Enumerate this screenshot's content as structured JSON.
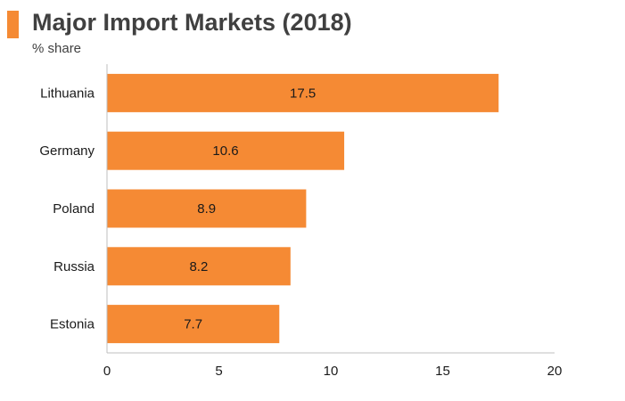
{
  "header": {
    "title": "Major Import Markets (2018)",
    "subtitle": "% share",
    "accent_color": "#f58a34"
  },
  "chart_data": {
    "type": "bar",
    "orientation": "horizontal",
    "title": "Major Import Markets (2018)",
    "subtitle": "% share",
    "categories": [
      "Lithuania",
      "Germany",
      "Poland",
      "Russia",
      "Estonia"
    ],
    "values": [
      17.5,
      10.6,
      8.9,
      8.2,
      7.7
    ],
    "xlim": [
      0,
      20
    ],
    "xticks": [
      0,
      5,
      10,
      15,
      20
    ],
    "bar_color": "#f58a34",
    "axis_color": "#bfbfbf",
    "grid": false,
    "legend": "none"
  }
}
